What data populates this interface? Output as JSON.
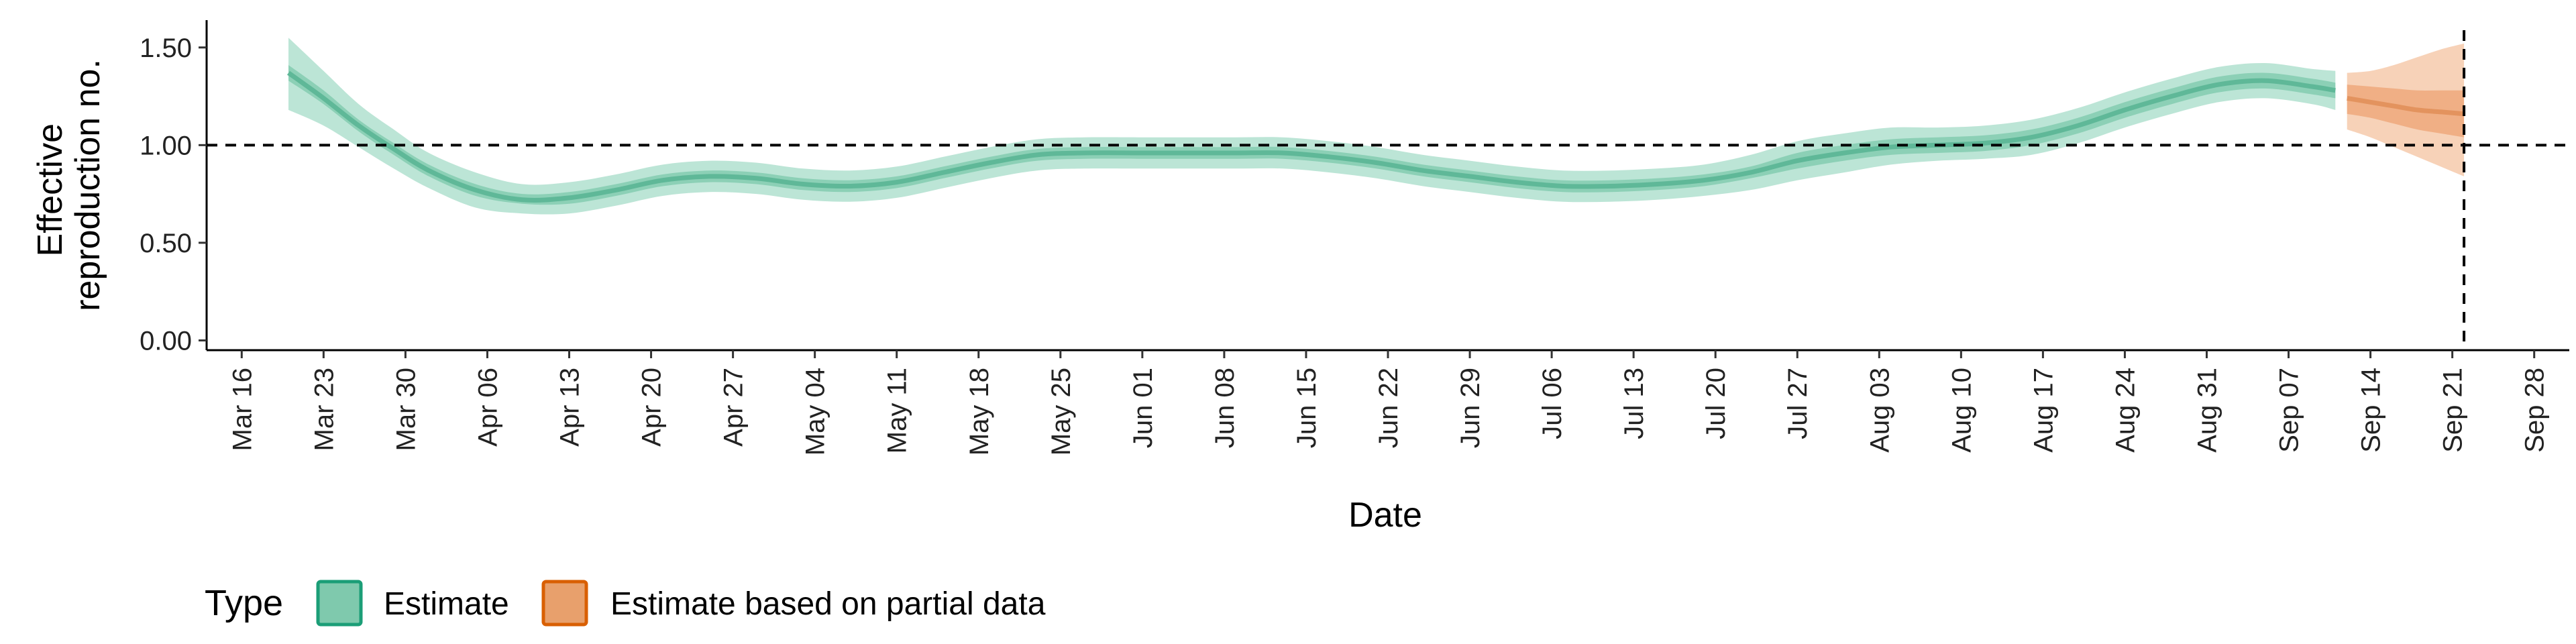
{
  "chart_data": {
    "type": "area",
    "xlabel": "Date",
    "ylabel_lines": [
      "Effective",
      "reproduction no."
    ],
    "x_ticks": [
      "2020-03-16",
      "2020-03-23",
      "2020-03-30",
      "2020-04-06",
      "2020-04-13",
      "2020-04-20",
      "2020-04-27",
      "2020-05-04",
      "2020-05-11",
      "2020-05-18",
      "2020-05-25",
      "2020-06-01",
      "2020-06-08",
      "2020-06-15",
      "2020-06-22",
      "2020-06-29",
      "2020-07-06",
      "2020-07-13",
      "2020-07-20",
      "2020-07-27",
      "2020-08-03",
      "2020-08-10",
      "2020-08-17",
      "2020-08-24",
      "2020-08-31",
      "2020-09-07",
      "2020-09-14",
      "2020-09-21",
      "2020-09-28"
    ],
    "x_tick_labels": [
      "Mar 16",
      "Mar 23",
      "Mar 30",
      "Apr 06",
      "Apr 13",
      "Apr 20",
      "Apr 27",
      "May 04",
      "May 11",
      "May 18",
      "May 25",
      "Jun 01",
      "Jun 08",
      "Jun 15",
      "Jun 22",
      "Jun 29",
      "Jul 06",
      "Jul 13",
      "Jul 20",
      "Jul 27",
      "Aug 03",
      "Aug 10",
      "Aug 17",
      "Aug 24",
      "Aug 31",
      "Sep 07",
      "Sep 14",
      "Sep 21",
      "Sep 28"
    ],
    "xlim": [
      "2020-03-13",
      "2020-10-01"
    ],
    "ylim": [
      -0.05,
      1.64
    ],
    "y_ticks": [
      0.0,
      0.5,
      1.0,
      1.5
    ],
    "y_tick_labels": [
      "0.00",
      "0.50",
      "1.00",
      "1.50"
    ],
    "hline": 1.0,
    "vline": "2020-09-22",
    "legend": {
      "title": "Type",
      "position": "bottom-left",
      "items": [
        {
          "label": "Estimate",
          "fill": "#7fc9ad",
          "stroke": "#1b9e77"
        },
        {
          "label": "Estimate based on partial data",
          "fill": "#e8a06c",
          "stroke": "#d95f02"
        }
      ]
    },
    "series": [
      {
        "name": "Estimate",
        "color": "#1b9e77",
        "x": [
          "2020-03-20",
          "2020-03-23",
          "2020-03-26",
          "2020-03-29",
          "2020-04-01",
          "2020-04-05",
          "2020-04-09",
          "2020-04-13",
          "2020-04-17",
          "2020-04-21",
          "2020-04-25",
          "2020-04-29",
          "2020-05-03",
          "2020-05-07",
          "2020-05-11",
          "2020-05-15",
          "2020-05-19",
          "2020-05-23",
          "2020-05-27",
          "2020-06-01",
          "2020-06-05",
          "2020-06-09",
          "2020-06-13",
          "2020-06-17",
          "2020-06-21",
          "2020-06-25",
          "2020-06-29",
          "2020-07-03",
          "2020-07-07",
          "2020-07-11",
          "2020-07-15",
          "2020-07-19",
          "2020-07-23",
          "2020-07-27",
          "2020-07-31",
          "2020-08-04",
          "2020-08-08",
          "2020-08-12",
          "2020-08-16",
          "2020-08-20",
          "2020-08-24",
          "2020-08-28",
          "2020-09-01",
          "2020-09-05",
          "2020-09-09",
          "2020-09-11"
        ],
        "median": [
          1.37,
          1.24,
          1.1,
          0.98,
          0.87,
          0.77,
          0.72,
          0.73,
          0.77,
          0.82,
          0.84,
          0.83,
          0.8,
          0.79,
          0.81,
          0.86,
          0.91,
          0.95,
          0.96,
          0.96,
          0.96,
          0.96,
          0.96,
          0.94,
          0.91,
          0.87,
          0.84,
          0.81,
          0.79,
          0.79,
          0.8,
          0.82,
          0.86,
          0.92,
          0.96,
          0.99,
          1.0,
          1.01,
          1.04,
          1.1,
          1.18,
          1.25,
          1.31,
          1.33,
          1.3,
          1.28
        ],
        "inner_lower": [
          1.33,
          1.21,
          1.07,
          0.95,
          0.84,
          0.74,
          0.7,
          0.7,
          0.74,
          0.79,
          0.81,
          0.8,
          0.77,
          0.76,
          0.78,
          0.83,
          0.88,
          0.92,
          0.93,
          0.93,
          0.93,
          0.93,
          0.93,
          0.91,
          0.88,
          0.84,
          0.81,
          0.78,
          0.76,
          0.76,
          0.77,
          0.79,
          0.83,
          0.88,
          0.92,
          0.95,
          0.96,
          0.97,
          1.0,
          1.06,
          1.14,
          1.21,
          1.27,
          1.29,
          1.26,
          1.24
        ],
        "inner_upper": [
          1.41,
          1.28,
          1.13,
          1.01,
          0.9,
          0.8,
          0.75,
          0.76,
          0.8,
          0.85,
          0.87,
          0.86,
          0.83,
          0.82,
          0.84,
          0.89,
          0.94,
          0.98,
          0.99,
          0.99,
          0.99,
          0.99,
          0.99,
          0.97,
          0.94,
          0.9,
          0.87,
          0.84,
          0.82,
          0.82,
          0.83,
          0.85,
          0.89,
          0.96,
          1.0,
          1.03,
          1.04,
          1.05,
          1.08,
          1.14,
          1.22,
          1.29,
          1.35,
          1.37,
          1.34,
          1.32
        ],
        "outer_lower": [
          1.18,
          1.1,
          0.99,
          0.88,
          0.78,
          0.68,
          0.65,
          0.65,
          0.69,
          0.74,
          0.76,
          0.75,
          0.72,
          0.71,
          0.73,
          0.78,
          0.83,
          0.87,
          0.88,
          0.88,
          0.88,
          0.88,
          0.88,
          0.86,
          0.83,
          0.79,
          0.76,
          0.73,
          0.71,
          0.71,
          0.72,
          0.74,
          0.77,
          0.82,
          0.86,
          0.9,
          0.92,
          0.93,
          0.95,
          1.01,
          1.09,
          1.16,
          1.22,
          1.24,
          1.21,
          1.18
        ],
        "outer_upper": [
          1.55,
          1.38,
          1.21,
          1.08,
          0.96,
          0.86,
          0.8,
          0.81,
          0.85,
          0.9,
          0.92,
          0.91,
          0.88,
          0.87,
          0.89,
          0.94,
          0.99,
          1.03,
          1.04,
          1.04,
          1.04,
          1.04,
          1.04,
          1.02,
          0.99,
          0.95,
          0.92,
          0.89,
          0.87,
          0.87,
          0.88,
          0.9,
          0.95,
          1.02,
          1.06,
          1.09,
          1.09,
          1.1,
          1.13,
          1.19,
          1.27,
          1.34,
          1.4,
          1.42,
          1.39,
          1.38
        ]
      },
      {
        "name": "Estimate based on partial data",
        "color": "#d95f02",
        "x": [
          "2020-09-12",
          "2020-09-14",
          "2020-09-16",
          "2020-09-18",
          "2020-09-20",
          "2020-09-22"
        ],
        "median": [
          1.24,
          1.22,
          1.2,
          1.18,
          1.17,
          1.16
        ],
        "inner_lower": [
          1.16,
          1.14,
          1.11,
          1.08,
          1.06,
          1.04
        ],
        "inner_upper": [
          1.31,
          1.3,
          1.29,
          1.28,
          1.28,
          1.28
        ],
        "outer_lower": [
          1.08,
          1.04,
          0.99,
          0.94,
          0.89,
          0.84
        ],
        "outer_upper": [
          1.37,
          1.38,
          1.41,
          1.45,
          1.49,
          1.52
        ]
      }
    ]
  }
}
